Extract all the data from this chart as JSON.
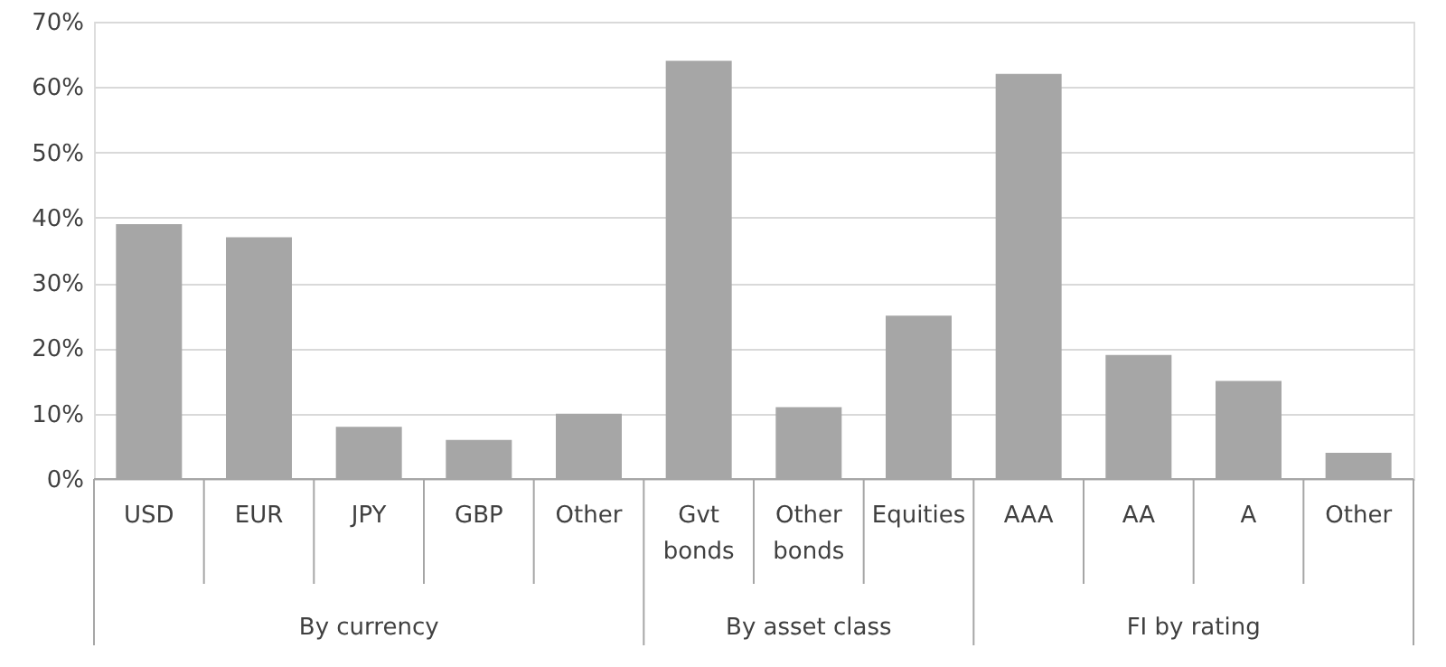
{
  "chart_data": {
    "type": "bar",
    "categories": [
      "USD",
      "EUR",
      "JPY",
      "GBP",
      "Other",
      "Gvt bonds",
      "Other bonds",
      "Equities",
      "AAA",
      "AA",
      "A",
      "Other"
    ],
    "values": [
      39,
      37,
      8,
      6,
      10,
      64,
      11,
      25,
      62,
      19,
      15,
      4
    ],
    "color": "#a6a6a6",
    "ylim": [
      0,
      70
    ],
    "yticks": [
      {
        "value": 0,
        "label": "0%"
      },
      {
        "value": 10,
        "label": "10%"
      },
      {
        "value": 20,
        "label": "20%"
      },
      {
        "value": 30,
        "label": "30%"
      },
      {
        "value": 40,
        "label": "40%"
      },
      {
        "value": 50,
        "label": "50%"
      },
      {
        "value": 60,
        "label": "60%"
      },
      {
        "value": 70,
        "label": "70%"
      }
    ],
    "grid": "y",
    "annotations": [
      "By currency",
      "By asset class",
      "FI by rating"
    ]
  }
}
